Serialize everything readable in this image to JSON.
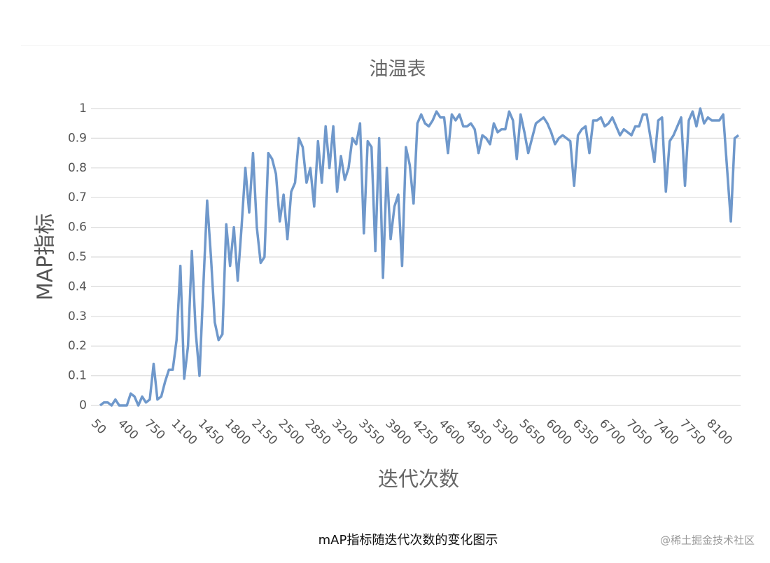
{
  "chart_data": {
    "type": "line",
    "title": "油温表",
    "x_label": "迭代次数",
    "y_label": "MAP指标",
    "categories": [
      "50",
      null,
      null,
      null,
      null,
      null,
      null,
      "400",
      null,
      null,
      null,
      null,
      null,
      null,
      "750",
      null,
      null,
      null,
      null,
      null,
      null,
      "1100",
      null,
      null,
      null,
      null,
      null,
      null,
      "1450",
      null,
      null,
      null,
      null,
      null,
      null,
      "1800",
      null,
      null,
      null,
      null,
      null,
      null,
      "2150",
      null,
      null,
      null,
      null,
      null,
      null,
      "2500",
      null,
      null,
      null,
      null,
      null,
      null,
      "2850",
      null,
      null,
      null,
      null,
      null,
      null,
      "3200",
      null,
      null,
      null,
      null,
      null,
      null,
      "3550",
      null,
      null,
      null,
      null,
      null,
      null,
      "3900",
      null,
      null,
      null,
      null,
      null,
      null,
      "4250",
      null,
      null,
      null,
      null,
      null,
      null,
      "4600",
      null,
      null,
      null,
      null,
      null,
      null,
      "4950",
      null,
      null,
      null,
      null,
      null,
      null,
      "5300",
      null,
      null,
      null,
      null,
      null,
      null,
      "5650",
      null,
      null,
      null,
      null,
      null,
      null,
      "6000",
      null,
      null,
      null,
      null,
      null,
      null,
      "6350",
      null,
      null,
      null,
      null,
      null,
      null,
      "6700",
      null,
      null,
      null,
      null,
      null,
      null,
      "7050",
      null,
      null,
      null,
      null,
      null,
      null,
      "7400",
      null,
      null,
      null,
      null,
      null,
      null,
      "7750",
      null,
      null,
      null,
      null,
      null,
      null,
      "8100",
      null,
      null,
      null,
      null,
      null,
      null
    ],
    "series": [
      {
        "color": "#6f98cb",
        "values": [
          0,
          0.01,
          0.01,
          0,
          0.02,
          0,
          0,
          0,
          0.04,
          0.03,
          0,
          0.03,
          0.01,
          0.02,
          0.14,
          0.02,
          0.03,
          0.08,
          0.12,
          0.12,
          0.22,
          0.47,
          0.09,
          0.2,
          0.52,
          0.25,
          0.1,
          0.4,
          0.69,
          0.5,
          0.28,
          0.22,
          0.24,
          0.61,
          0.47,
          0.6,
          0.42,
          0.6,
          0.8,
          0.65,
          0.85,
          0.6,
          0.48,
          0.5,
          0.85,
          0.83,
          0.78,
          0.62,
          0.71,
          0.56,
          0.72,
          0.75,
          0.9,
          0.87,
          0.75,
          0.8,
          0.67,
          0.89,
          0.75,
          0.94,
          0.8,
          0.94,
          0.72,
          0.84,
          0.76,
          0.8,
          0.9,
          0.88,
          0.95,
          0.58,
          0.89,
          0.87,
          0.52,
          0.9,
          0.43,
          0.8,
          0.56,
          0.67,
          0.71,
          0.47,
          0.87,
          0.81,
          0.68,
          0.95,
          0.98,
          0.95,
          0.94,
          0.96,
          0.99,
          0.97,
          0.97,
          0.85,
          0.98,
          0.96,
          0.98,
          0.94,
          0.94,
          0.95,
          0.93,
          0.85,
          0.91,
          0.9,
          0.88,
          0.95,
          0.92,
          0.93,
          0.93,
          0.99,
          0.96,
          0.83,
          0.98,
          0.92,
          0.85,
          0.9,
          0.95,
          0.96,
          0.97,
          0.95,
          0.92,
          0.88,
          0.9,
          0.91,
          0.9,
          0.89,
          0.74,
          0.91,
          0.93,
          0.94,
          0.85,
          0.96,
          0.96,
          0.97,
          0.94,
          0.95,
          0.97,
          0.94,
          0.91,
          0.93,
          0.92,
          0.91,
          0.94,
          0.94,
          0.98,
          0.98,
          0.9,
          0.82,
          0.96,
          0.97,
          0.72,
          0.89,
          0.91,
          0.94,
          0.97,
          0.74,
          0.96,
          0.99,
          0.94,
          1,
          0.95,
          0.97,
          0.96,
          0.96,
          0.96,
          0.98,
          0.8,
          0.62,
          0.9,
          0.91
        ]
      }
    ],
    "ylim": [
      0,
      1
    ],
    "yticks": [
      0,
      0.1,
      0.2,
      0.3,
      0.4,
      0.5,
      0.6,
      0.7,
      0.8,
      0.9,
      1
    ],
    "grid": true
  },
  "caption": "mAP指标随迭代次数的变化图示",
  "watermark": "@稀土掘金技术社区"
}
